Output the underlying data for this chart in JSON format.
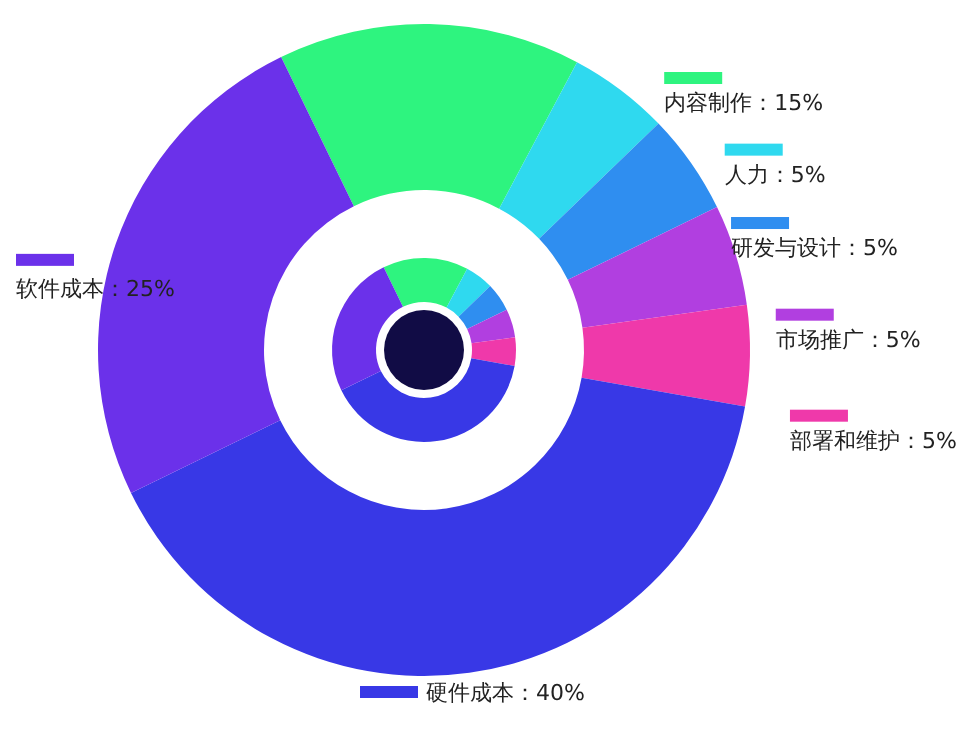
{
  "chart_data": {
    "type": "donut",
    "categories": [
      "内容制作：15%",
      "人力：5%",
      "研发与设计：5%",
      "市场推广：5%",
      "部署和维护：5%",
      "硬件成本：40%",
      "软件成本：25%"
    ],
    "colors": [
      "#2ef47f",
      "#2fd9ef",
      "#2f8ef0",
      "#b13fe0",
      "#ef39aa",
      "#3838e6",
      "#6b31ea"
    ],
    "legend": "right",
    "series": [
      {
        "values": [
          15,
          5,
          5,
          5,
          5,
          40,
          25
        ]
      },
      {
        "values": [
          15,
          5,
          5,
          5,
          5,
          40,
          25
        ]
      }
    ]
  }
}
